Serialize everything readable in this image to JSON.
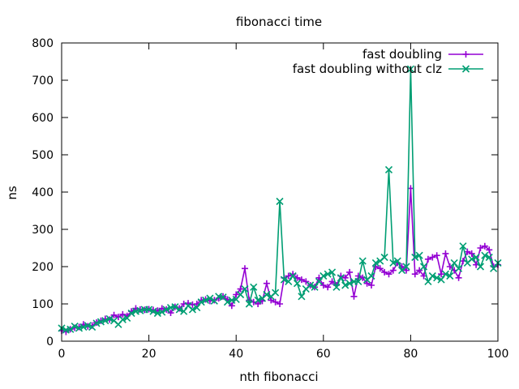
{
  "chart_data": {
    "type": "line",
    "title": "fibonacci time",
    "xlabel": "nth fibonacci",
    "ylabel": "ns",
    "xlim": [
      0,
      100
    ],
    "ylim": [
      0,
      800
    ],
    "xticks": [
      "0",
      "20",
      "40",
      "60",
      "80",
      "100"
    ],
    "yticks": [
      "0",
      "100",
      "200",
      "300",
      "400",
      "500",
      "600",
      "700",
      "800"
    ],
    "grid": false,
    "legend_position": "top-right",
    "series": [
      {
        "name": "fast doubling",
        "color": "#9400d3",
        "marker": "plus",
        "x": [
          0,
          1,
          2,
          3,
          4,
          5,
          6,
          7,
          8,
          9,
          10,
          11,
          12,
          13,
          14,
          15,
          16,
          17,
          18,
          19,
          20,
          21,
          22,
          23,
          24,
          25,
          26,
          27,
          28,
          29,
          30,
          31,
          32,
          33,
          34,
          35,
          36,
          37,
          38,
          39,
          40,
          41,
          42,
          43,
          44,
          45,
          46,
          47,
          48,
          49,
          50,
          51,
          52,
          53,
          54,
          55,
          56,
          57,
          58,
          59,
          60,
          61,
          62,
          63,
          64,
          65,
          66,
          67,
          68,
          69,
          70,
          71,
          72,
          73,
          74,
          75,
          76,
          77,
          78,
          79,
          80,
          81,
          82,
          83,
          84,
          85,
          86,
          87,
          88,
          89,
          90,
          91,
          92,
          93,
          94,
          95,
          96,
          97,
          98,
          99,
          100
        ],
        "values": [
          28,
          25,
          32,
          36,
          38,
          45,
          40,
          42,
          50,
          55,
          60,
          58,
          70,
          65,
          72,
          68,
          80,
          88,
          85,
          84,
          86,
          84,
          82,
          88,
          85,
          76,
          92,
          88,
          100,
          102,
          98,
          100,
          110,
          112,
          108,
          110,
          115,
          120,
          112,
          95,
          125,
          140,
          195,
          110,
          105,
          100,
          108,
          155,
          110,
          105,
          100,
          170,
          175,
          180,
          170,
          165,
          160,
          150,
          145,
          170,
          150,
          145,
          160,
          150,
          175,
          170,
          185,
          120,
          175,
          170,
          155,
          150,
          200,
          195,
          185,
          180,
          190,
          210,
          200,
          190,
          410,
          180,
          190,
          175,
          220,
          225,
          230,
          180,
          235,
          200,
          190,
          170,
          215,
          240,
          235,
          205,
          250,
          255,
          245,
          200,
          205
        ]
      },
      {
        "name": "fast doubling without clz",
        "color": "#009e73",
        "marker": "cross",
        "x": [
          0,
          1,
          2,
          3,
          4,
          5,
          6,
          7,
          8,
          9,
          10,
          11,
          12,
          13,
          14,
          15,
          16,
          17,
          18,
          19,
          20,
          21,
          22,
          23,
          24,
          25,
          26,
          27,
          28,
          29,
          30,
          31,
          32,
          33,
          34,
          35,
          36,
          37,
          38,
          39,
          40,
          41,
          42,
          43,
          44,
          45,
          46,
          47,
          48,
          49,
          50,
          51,
          52,
          53,
          54,
          55,
          56,
          57,
          58,
          59,
          60,
          61,
          62,
          63,
          64,
          65,
          66,
          67,
          68,
          69,
          70,
          71,
          72,
          73,
          74,
          75,
          76,
          77,
          78,
          79,
          80,
          81,
          82,
          83,
          84,
          85,
          86,
          87,
          88,
          89,
          90,
          91,
          92,
          93,
          94,
          95,
          96,
          97,
          98,
          99,
          100
        ],
        "values": [
          35,
          30,
          32,
          40,
          35,
          38,
          42,
          38,
          48,
          52,
          55,
          60,
          55,
          45,
          58,
          62,
          75,
          80,
          82,
          85,
          85,
          80,
          75,
          78,
          85,
          90,
          92,
          85,
          80,
          95,
          85,
          90,
          105,
          110,
          115,
          108,
          120,
          118,
          105,
          110,
          112,
          125,
          140,
          100,
          145,
          110,
          115,
          125,
          120,
          130,
          375,
          165,
          160,
          175,
          155,
          120,
          140,
          150,
          145,
          160,
          175,
          180,
          185,
          145,
          170,
          150,
          155,
          160,
          160,
          215,
          165,
          175,
          210,
          215,
          225,
          460,
          210,
          215,
          190,
          200,
          730,
          225,
          230,
          200,
          160,
          175,
          170,
          165,
          180,
          175,
          210,
          195,
          255,
          210,
          220,
          225,
          200,
          230,
          225,
          195,
          210
        ]
      }
    ]
  }
}
